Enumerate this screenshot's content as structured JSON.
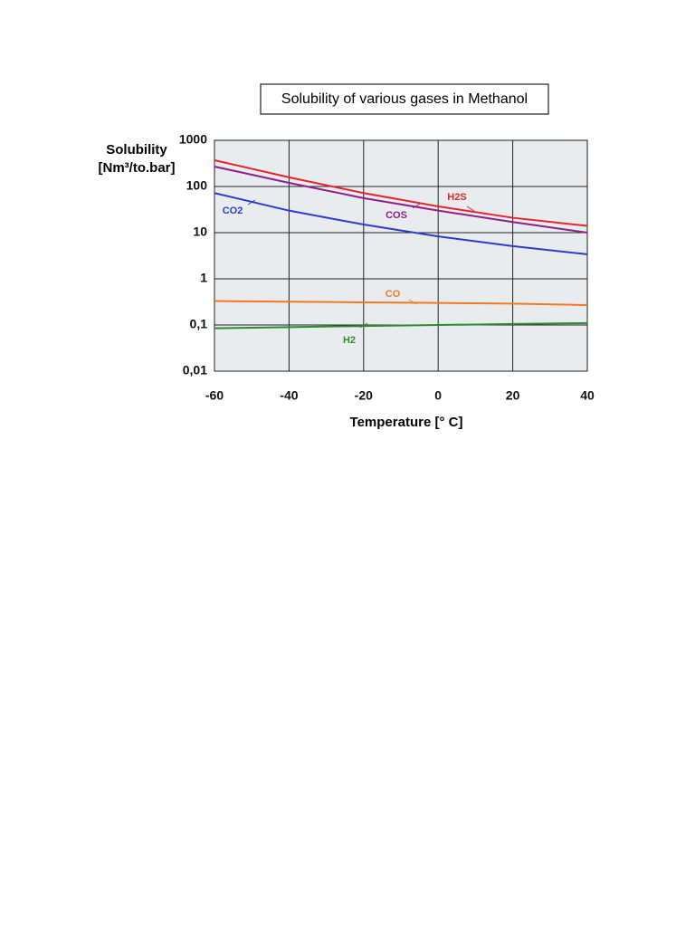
{
  "chart_data": {
    "type": "line",
    "title": "Solubility of various gases in Methanol",
    "ylabel": [
      "Solubility",
      "[Nm³/to.bar]"
    ],
    "xlabel": "Temperature [° C]",
    "x": [
      -60,
      -40,
      -20,
      0,
      20,
      40
    ],
    "xlim": [
      -60,
      40
    ],
    "xticks": [
      -60,
      -40,
      -20,
      0,
      20,
      40
    ],
    "ylim": [
      0.01,
      1000
    ],
    "yscale": "log",
    "yticks": [
      {
        "value": 0.01,
        "label": "0,01"
      },
      {
        "value": 0.1,
        "label": "0,1"
      },
      1,
      10,
      100,
      1000
    ],
    "grid": true,
    "series": [
      {
        "name": "H2S",
        "color": "#e52329",
        "values": [
          370,
          158,
          72,
          37,
          21,
          14
        ]
      },
      {
        "name": "COS",
        "color": "#8e1f8e",
        "values": [
          270,
          120,
          56,
          30,
          17,
          10
        ]
      },
      {
        "name": "CO2",
        "color": "#2b3bd0",
        "values": [
          72,
          30,
          15,
          8.3,
          5.1,
          3.4
        ]
      },
      {
        "name": "CO",
        "color": "#f07a22",
        "values": [
          0.33,
          0.32,
          0.31,
          0.3,
          0.29,
          0.27
        ]
      },
      {
        "name": "H2",
        "color": "#2e8b2e",
        "values": [
          0.085,
          0.09,
          0.095,
          0.1,
          0.105,
          0.11
        ]
      }
    ]
  }
}
